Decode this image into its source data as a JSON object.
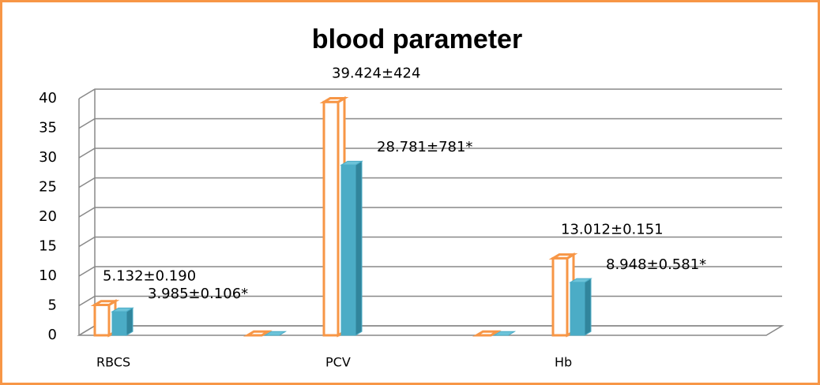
{
  "chart_data": {
    "type": "bar3d",
    "title": "blood parameter",
    "categories": [
      "RBCS",
      null,
      null,
      "PCV",
      null,
      null,
      "Hb",
      null,
      null
    ],
    "series": [
      {
        "color": "#f79646",
        "fill": "#ffffff",
        "values": [
          5.132,
          null,
          0,
          39.424,
          null,
          0,
          13.012,
          null,
          null
        ],
        "value_labels": [
          "5.132±0.190",
          null,
          null,
          "39.424±424",
          null,
          null,
          "13.012±0.151",
          null,
          null
        ]
      },
      {
        "color": "#4bacc6",
        "fill": "#4bacc6",
        "values": [
          3.985,
          null,
          0,
          28.781,
          null,
          0,
          8.948,
          null,
          null
        ],
        "value_labels": [
          "3.985±0.106*",
          null,
          null,
          "28.781±781*",
          null,
          null,
          "8.948±0.581*",
          null,
          null
        ]
      }
    ],
    "ylim": [
      0,
      40
    ],
    "yticks": [
      0,
      5,
      10,
      15,
      20,
      25,
      30,
      35,
      40
    ],
    "grid": true
  }
}
